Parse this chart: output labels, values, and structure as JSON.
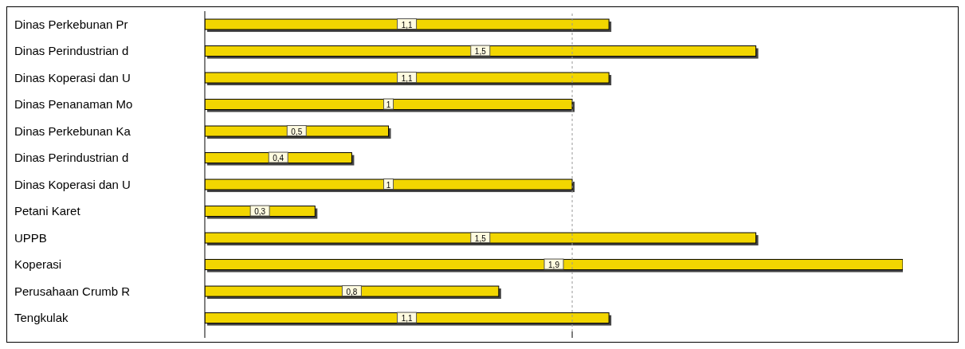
{
  "chart_data": {
    "type": "bar",
    "orientation": "horizontal",
    "categories": [
      "Dinas  Perkebunan Pr",
      "Dinas Perindustrian d",
      "Dinas Koperasi dan U",
      "Dinas  Penanaman Mo",
      "Dinas  Perkebunan Ka",
      "Dinas Perindustrian d",
      "Dinas Koperasi dan U",
      "Petani Karet",
      "UPPB",
      "Koperasi",
      "Perusahaan  Crumb R",
      "Tengkulak"
    ],
    "values": [
      1.1,
      1.5,
      1.1,
      1,
      0.5,
      0.4,
      1,
      0.3,
      1.5,
      1.9,
      0.8,
      1.1
    ],
    "value_labels": [
      "1,1",
      "1,5",
      "1,1",
      "1",
      "0,5",
      "0,4",
      "1",
      "0,3",
      "1,5",
      "1,9",
      "0,8",
      "1,1"
    ],
    "color": "#f2d600",
    "xticks": [
      {
        "value": 0,
        "label": null
      },
      {
        "value": 1,
        "label": null
      }
    ],
    "tick_labels": "y",
    "ref_lines": [
      {
        "axis": "x",
        "value": 1,
        "line_style": "dashed",
        "color": "#999999"
      }
    ]
  }
}
